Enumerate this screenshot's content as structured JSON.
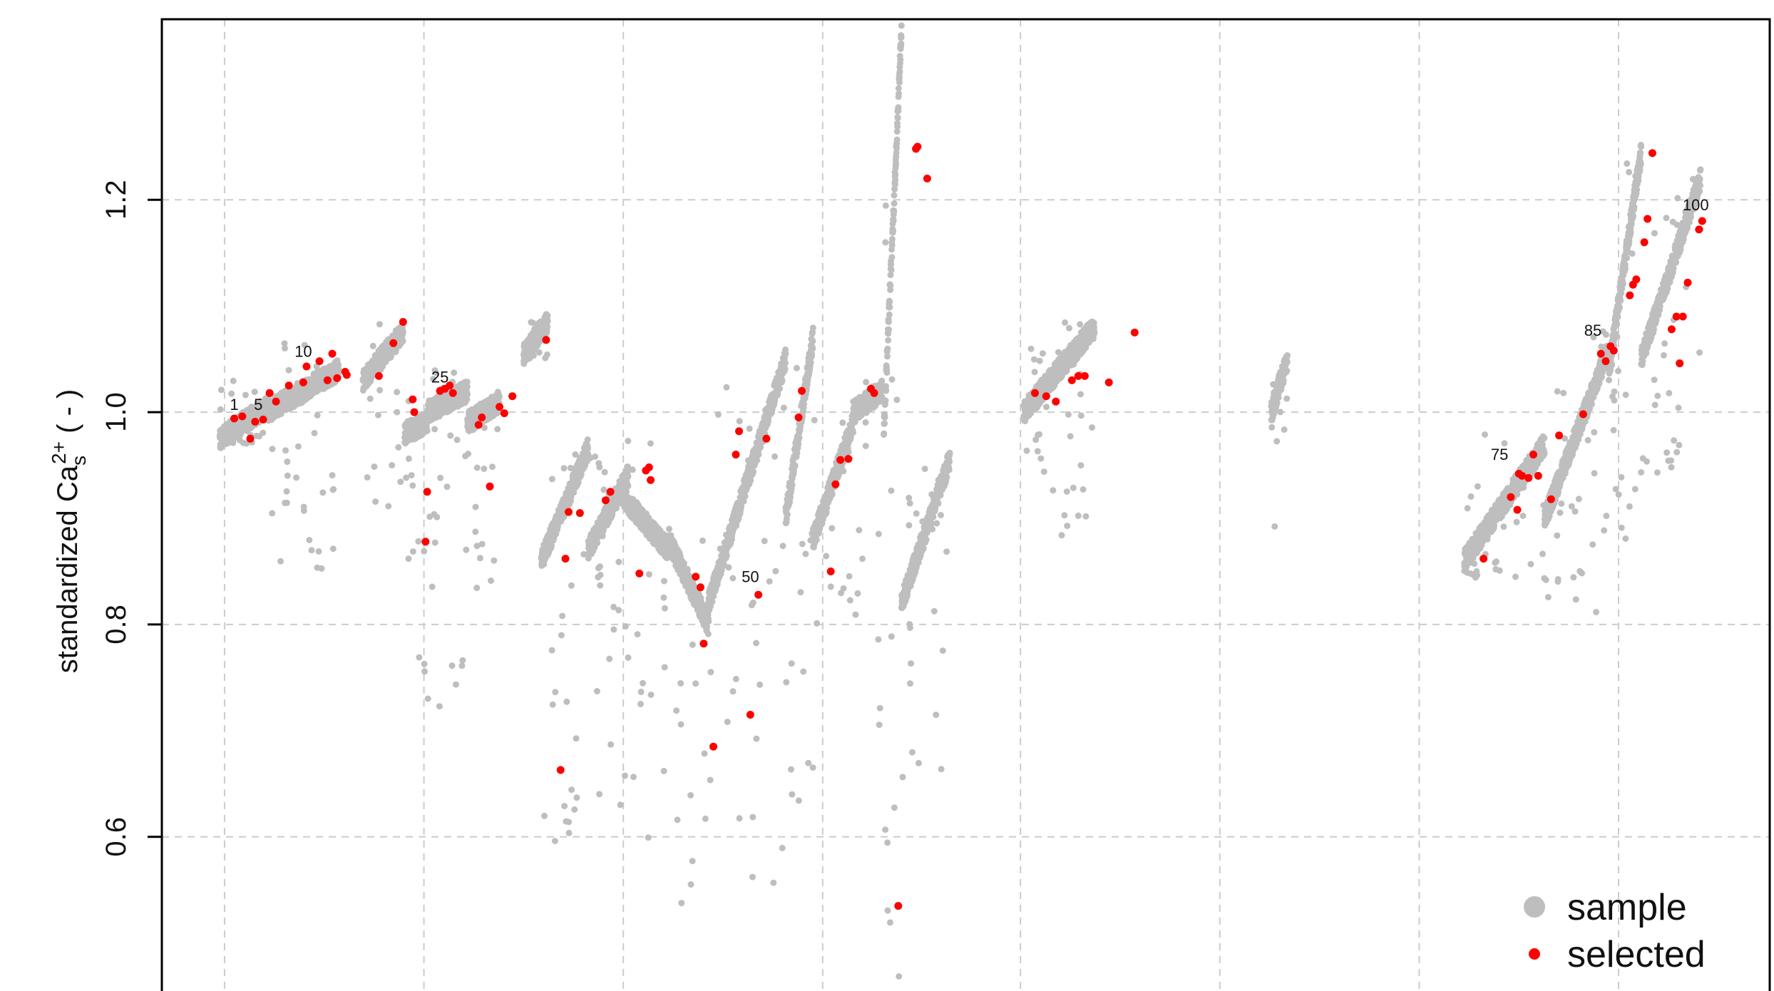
{
  "chart_data": {
    "type": "scatter",
    "ylabel": {
      "prefix": "standardized Ca",
      "subscript": "s",
      "superscript": "2+",
      "suffix": " ( - )"
    },
    "ylim": [
      0.43,
      1.37
    ],
    "yticks": [
      0.6,
      0.8,
      1.0,
      1.2
    ],
    "ytick_labels": [
      "0.6",
      "0.8",
      "1.0",
      "1.2"
    ],
    "xlim": [
      0,
      100
    ],
    "x_gridlines": [
      3.9,
      16.3,
      28.7,
      41.1,
      53.4,
      65.8,
      78.2,
      90.6
    ],
    "grid": true,
    "legend": {
      "position": "bottom-right",
      "entries": [
        {
          "label": "sample",
          "color": "#bebebe"
        },
        {
          "label": "selected",
          "color": "#ff0000"
        }
      ]
    },
    "annotations": [
      {
        "text": "1",
        "x": 4.5,
        "y": 1.002
      },
      {
        "text": "5",
        "x": 6.0,
        "y": 1.002
      },
      {
        "text": "10",
        "x": 8.8,
        "y": 1.052
      },
      {
        "text": "25",
        "x": 17.3,
        "y": 1.028
      },
      {
        "text": "50",
        "x": 36.6,
        "y": 0.84
      },
      {
        "text": "75",
        "x": 83.2,
        "y": 0.955
      },
      {
        "text": "85",
        "x": 89.0,
        "y": 1.072
      },
      {
        "text": "100",
        "x": 95.4,
        "y": 1.19
      }
    ],
    "series": [
      {
        "name": "sample",
        "color": "#bebebe",
        "segments": [
          {
            "x": [
              3.6,
              6.5
            ],
            "y": [
              0.975,
              1.005
            ],
            "low": 0.97,
            "high": 1.03
          },
          {
            "x": [
              6.5,
              11.0
            ],
            "y": [
              1.0,
              1.04
            ],
            "low": 0.85,
            "high": 1.065
          },
          {
            "x": [
              12.5,
              15.0
            ],
            "y": [
              1.03,
              1.075
            ],
            "low": 0.9,
            "high": 1.09
          },
          {
            "x": [
              15.1,
              16.5
            ],
            "y": [
              0.98,
              0.99
            ],
            "low": 0.61,
            "high": 1.02
          },
          {
            "x": [
              16.5,
              19.0
            ],
            "y": [
              1.0,
              1.02
            ],
            "low": 0.7,
            "high": 1.04
          },
          {
            "x": [
              19.0,
              21.0
            ],
            "y": [
              0.99,
              1.01
            ],
            "low": 0.82,
            "high": 1.02
          },
          {
            "x": [
              22.5,
              24.0
            ],
            "y": [
              1.055,
              1.085
            ],
            "low": 1.05,
            "high": 1.09
          },
          {
            "x": [
              23.6,
              26.5
            ],
            "y": [
              0.86,
              0.965
            ],
            "low": 0.59,
            "high": 0.97
          },
          {
            "x": [
              26.5,
              29.0
            ],
            "y": [
              0.87,
              0.94
            ],
            "low": 0.63,
            "high": 0.96
          },
          {
            "x": [
              28.7,
              31.5
            ],
            "y": [
              0.92,
              0.87
            ],
            "low": 0.59,
            "high": 0.98
          },
          {
            "x": [
              31.5,
              34.0
            ],
            "y": [
              0.88,
              0.8
            ],
            "low": 0.49,
            "high": 0.89
          },
          {
            "x": [
              34.0,
              38.8
            ],
            "y": [
              0.82,
              1.05
            ],
            "low": 0.53,
            "high": 1.06
          },
          {
            "x": [
              38.8,
              40.5
            ],
            "y": [
              0.9,
              1.07
            ],
            "low": 0.6,
            "high": 1.08
          },
          {
            "x": [
              40.5,
              43.0
            ],
            "y": [
              0.88,
              0.99
            ],
            "low": 0.8,
            "high": 1.01
          },
          {
            "x": [
              43.0,
              44.8
            ],
            "y": [
              1.0,
              1.02
            ],
            "low": 0.68,
            "high": 1.03
          },
          {
            "x": [
              44.9,
              46.0
            ],
            "y": [
              0.98,
              1.36
            ],
            "low": 0.45,
            "high": 1.37
          },
          {
            "x": [
              46.0,
              49.0
            ],
            "y": [
              0.82,
              0.955
            ],
            "low": 0.65,
            "high": 0.96
          },
          {
            "x": [
              53.6,
              58.0
            ],
            "y": [
              1.0,
              1.08
            ],
            "low": 0.88,
            "high": 1.085
          },
          {
            "x": [
              69.0,
              70.0
            ],
            "y": [
              1.0,
              1.05
            ],
            "low": 0.85,
            "high": 1.05
          },
          {
            "x": [
              81.0,
              86.0
            ],
            "y": [
              0.86,
              0.97
            ],
            "low": 0.84,
            "high": 0.98
          },
          {
            "x": [
              86.0,
              90.0
            ],
            "y": [
              0.9,
              1.06
            ],
            "low": 0.78,
            "high": 1.08
          },
          {
            "x": [
              90.0,
              92.0
            ],
            "y": [
              1.04,
              1.245
            ],
            "low": 0.86,
            "high": 1.25
          },
          {
            "x": [
              92.0,
              95.7
            ],
            "y": [
              1.05,
              1.22
            ],
            "low": 0.94,
            "high": 1.22
          }
        ]
      },
      {
        "name": "selected",
        "color": "#ff0000",
        "points": [
          [
            4.5,
            0.994
          ],
          [
            5.0,
            0.996
          ],
          [
            5.5,
            0.975
          ],
          [
            5.8,
            0.991
          ],
          [
            6.3,
            0.993
          ],
          [
            6.7,
            1.018
          ],
          [
            7.1,
            1.01
          ],
          [
            7.9,
            1.025
          ],
          [
            8.8,
            1.028
          ],
          [
            9.0,
            1.043
          ],
          [
            9.8,
            1.048
          ],
          [
            10.3,
            1.03
          ],
          [
            10.6,
            1.055
          ],
          [
            10.9,
            1.032
          ],
          [
            11.4,
            1.038
          ],
          [
            11.5,
            1.035
          ],
          [
            13.5,
            1.034
          ],
          [
            14.4,
            1.065
          ],
          [
            15.0,
            1.085
          ],
          [
            15.6,
            1.012
          ],
          [
            15.7,
            1.0
          ],
          [
            16.5,
            0.925
          ],
          [
            16.4,
            0.878
          ],
          [
            17.3,
            1.02
          ],
          [
            17.6,
            1.022
          ],
          [
            17.9,
            1.025
          ],
          [
            18.1,
            1.018
          ],
          [
            19.7,
            0.988
          ],
          [
            19.9,
            0.995
          ],
          [
            20.4,
            0.93
          ],
          [
            21.0,
            1.005
          ],
          [
            21.3,
            0.999
          ],
          [
            21.8,
            1.015
          ],
          [
            23.9,
            1.068
          ],
          [
            24.8,
            0.663
          ],
          [
            25.1,
            0.862
          ],
          [
            25.3,
            0.906
          ],
          [
            26.0,
            0.905
          ],
          [
            27.6,
            0.917
          ],
          [
            27.9,
            0.925
          ],
          [
            29.7,
            0.848
          ],
          [
            30.1,
            0.945
          ],
          [
            30.3,
            0.948
          ],
          [
            30.4,
            0.936
          ],
          [
            33.2,
            0.845
          ],
          [
            33.5,
            0.835
          ],
          [
            33.7,
            0.782
          ],
          [
            34.3,
            0.685
          ],
          [
            35.7,
            0.96
          ],
          [
            35.9,
            0.982
          ],
          [
            36.6,
            0.715
          ],
          [
            37.1,
            0.828
          ],
          [
            37.6,
            0.975
          ],
          [
            39.6,
            0.995
          ],
          [
            39.8,
            1.02
          ],
          [
            41.6,
            0.85
          ],
          [
            41.9,
            0.932
          ],
          [
            42.2,
            0.955
          ],
          [
            42.7,
            0.956
          ],
          [
            44.1,
            1.022
          ],
          [
            44.3,
            1.018
          ],
          [
            45.8,
            0.535
          ],
          [
            46.9,
            1.248
          ],
          [
            47.0,
            1.25
          ],
          [
            47.6,
            1.22
          ],
          [
            54.3,
            1.018
          ],
          [
            55.0,
            1.015
          ],
          [
            55.6,
            1.01
          ],
          [
            56.6,
            1.03
          ],
          [
            57.0,
            1.034
          ],
          [
            57.4,
            1.034
          ],
          [
            58.9,
            1.028
          ],
          [
            60.5,
            1.075
          ],
          [
            82.2,
            0.862
          ],
          [
            83.9,
            0.92
          ],
          [
            84.3,
            0.908
          ],
          [
            84.4,
            0.942
          ],
          [
            84.6,
            0.94
          ],
          [
            85.0,
            0.938
          ],
          [
            85.3,
            0.96
          ],
          [
            85.6,
            0.94
          ],
          [
            86.4,
            0.918
          ],
          [
            86.9,
            0.978
          ],
          [
            88.4,
            0.998
          ],
          [
            89.5,
            1.055
          ],
          [
            89.8,
            1.048
          ],
          [
            90.1,
            1.062
          ],
          [
            90.3,
            1.058
          ],
          [
            91.3,
            1.11
          ],
          [
            91.5,
            1.12
          ],
          [
            91.7,
            1.125
          ],
          [
            92.2,
            1.16
          ],
          [
            92.4,
            1.182
          ],
          [
            92.7,
            1.244
          ],
          [
            93.9,
            1.078
          ],
          [
            94.2,
            1.09
          ],
          [
            94.6,
            1.09
          ],
          [
            94.4,
            1.046
          ],
          [
            94.9,
            1.122
          ],
          [
            95.6,
            1.172
          ],
          [
            95.8,
            1.18
          ]
        ]
      }
    ]
  }
}
